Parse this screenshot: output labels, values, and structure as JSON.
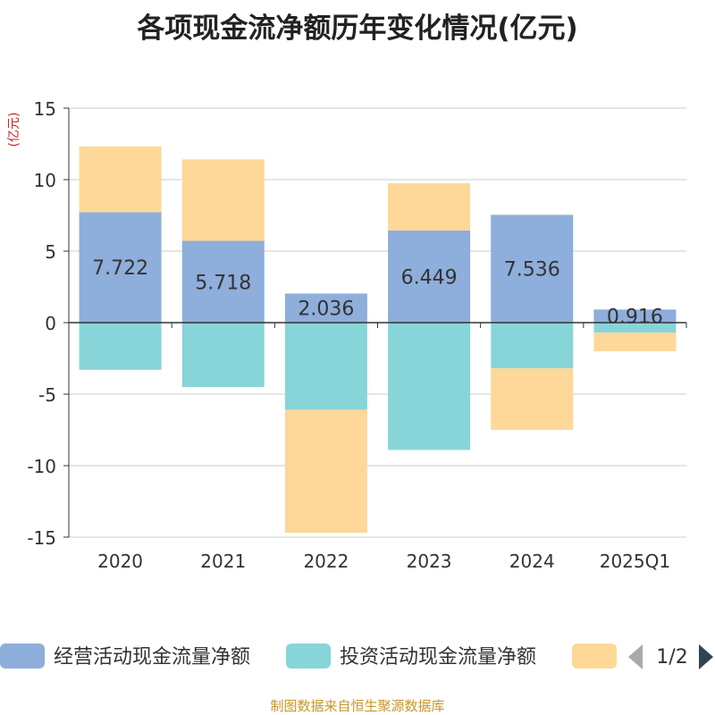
{
  "page": {
    "title": "各项现金流净额历年变化情况(亿元)",
    "source_note": "制图数据来自恒生聚源数据库"
  },
  "chart_data": {
    "type": "bar",
    "stacked": true,
    "title": "各项现金流净额历年变化情况(亿元)",
    "ylabel": "(亿元)",
    "xlabel": "",
    "ylim": [
      -15,
      15
    ],
    "yticks": [
      15,
      10,
      5,
      0,
      -5,
      -10,
      -15
    ],
    "grid": true,
    "categories": [
      "2020",
      "2021",
      "2022",
      "2023",
      "2024",
      "2025Q1"
    ],
    "series": [
      {
        "name": "经营活动现金流量净额",
        "color": "#8eaedb",
        "values": [
          7.722,
          5.718,
          2.036,
          6.449,
          7.536,
          0.916
        ],
        "labels": [
          "7.722",
          "5.718",
          "2.036",
          "6.449",
          "7.536",
          "0.916"
        ]
      },
      {
        "name": "投资活动现金流量净额",
        "color": "#88d5d9",
        "values": [
          -3.3,
          -4.5,
          -6.1,
          -8.9,
          -3.2,
          -0.7
        ]
      },
      {
        "name": "",
        "color": "#fdd898",
        "values": [
          4.6,
          5.7,
          -8.6,
          3.3,
          -4.3,
          -1.3
        ]
      }
    ],
    "legend": {
      "position": "bottom",
      "page": "1/2"
    }
  }
}
